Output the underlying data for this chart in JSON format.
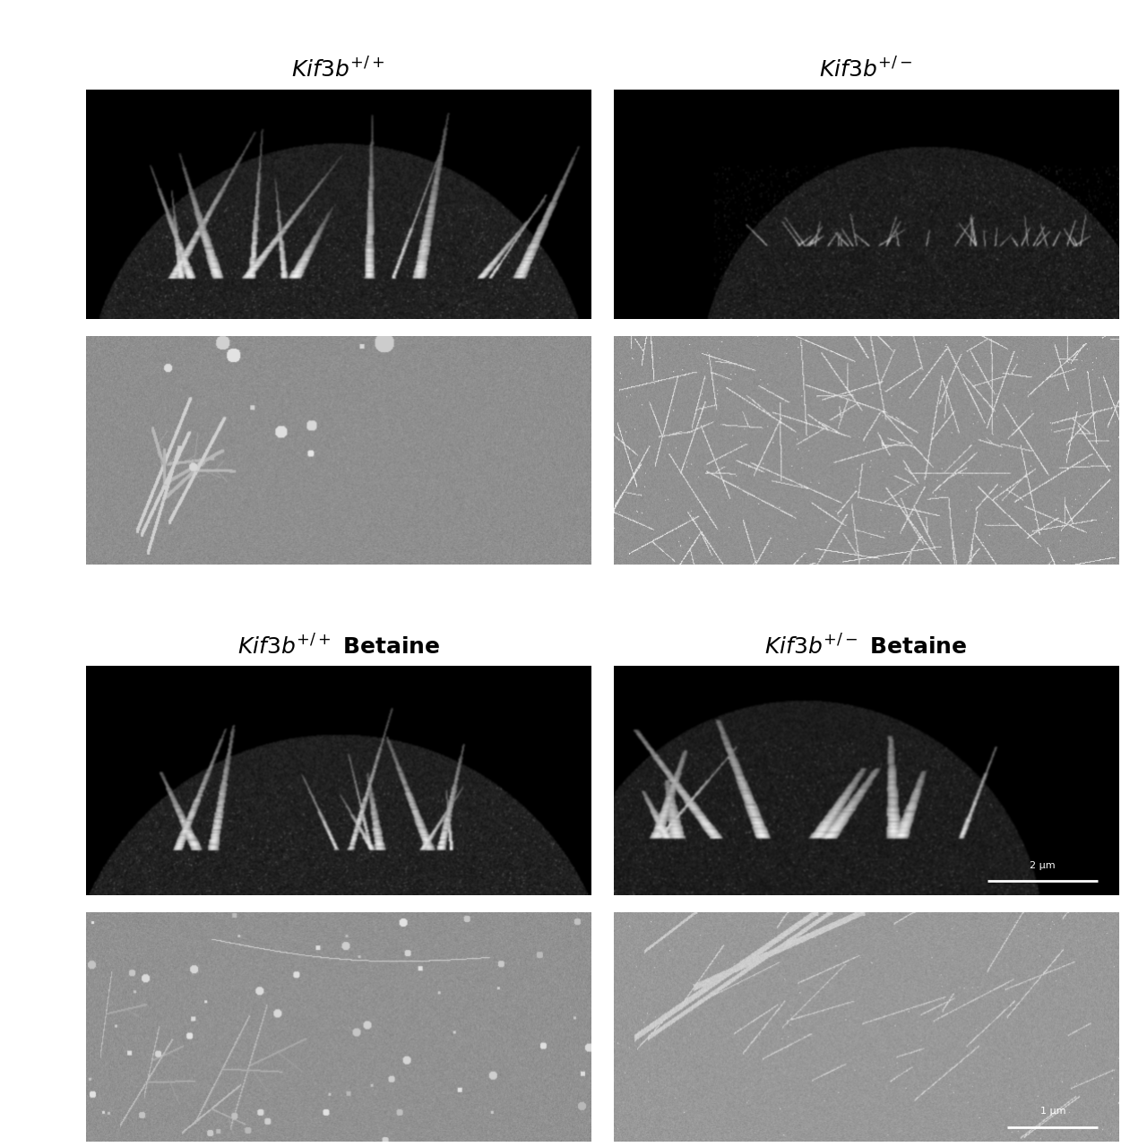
{
  "layout": {
    "rows": 4,
    "cols": 2,
    "figsize": [
      12.8,
      12.8
    ],
    "dpi": 100,
    "background_color": "#ffffff"
  },
  "titles_row0": {
    "left": {
      "italic": "Kif3b",
      "superscript": "+/+"
    },
    "right": {
      "italic": "Kif3b",
      "superscript": "+/-"
    }
  },
  "titles_row2": {
    "left": {
      "italic": "Kif3b",
      "superscript": "+/+",
      "suffix": " Betaine"
    },
    "right": {
      "italic": "Kif3b",
      "superscript": "+/-",
      "suffix": " Betaine"
    }
  },
  "scalebars": {
    "row2_right": "2 μm",
    "row3_right": "1 μm"
  },
  "title_fontsize": 18,
  "scalebar_fontsize": 8
}
